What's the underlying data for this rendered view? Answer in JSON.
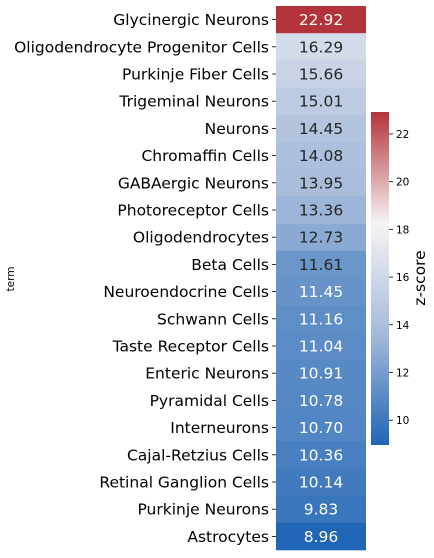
{
  "chart_data": {
    "type": "heatmap",
    "ylabel": "term",
    "colorbar_label": "z-score",
    "colorbar_ticks": [
      10,
      12,
      14,
      16,
      18,
      20,
      22
    ],
    "color_range": [
      8.96,
      22.92
    ],
    "colormap": [
      "#2066b5",
      "#a4bada",
      "#f7f3f3",
      "#b3333a"
    ],
    "rows": [
      {
        "term": "Glycinergic Neurons",
        "value": "22.92"
      },
      {
        "term": "Oligodendrocyte Progenitor Cells",
        "value": "16.29"
      },
      {
        "term": "Purkinje Fiber Cells",
        "value": "15.66"
      },
      {
        "term": "Trigeminal Neurons",
        "value": "15.01"
      },
      {
        "term": "Neurons",
        "value": "14.45"
      },
      {
        "term": "Chromaffin Cells",
        "value": "14.08"
      },
      {
        "term": "GABAergic Neurons",
        "value": "13.95"
      },
      {
        "term": "Photoreceptor Cells",
        "value": "13.36"
      },
      {
        "term": "Oligodendrocytes",
        "value": "12.73"
      },
      {
        "term": "Beta Cells",
        "value": "11.61"
      },
      {
        "term": "Neuroendocrine Cells",
        "value": "11.45"
      },
      {
        "term": "Schwann Cells",
        "value": "11.16"
      },
      {
        "term": "Taste Receptor Cells",
        "value": "11.04"
      },
      {
        "term": "Enteric Neurons",
        "value": "10.91"
      },
      {
        "term": "Pyramidal Cells",
        "value": "10.78"
      },
      {
        "term": "Interneurons",
        "value": "10.70"
      },
      {
        "term": "Cajal-Retzius Cells",
        "value": "10.36"
      },
      {
        "term": "Retinal Ganglion Cells",
        "value": "10.14"
      },
      {
        "term": "Purkinje Neurons",
        "value": "9.83"
      },
      {
        "term": "Astrocytes",
        "value": "8.96"
      }
    ]
  }
}
